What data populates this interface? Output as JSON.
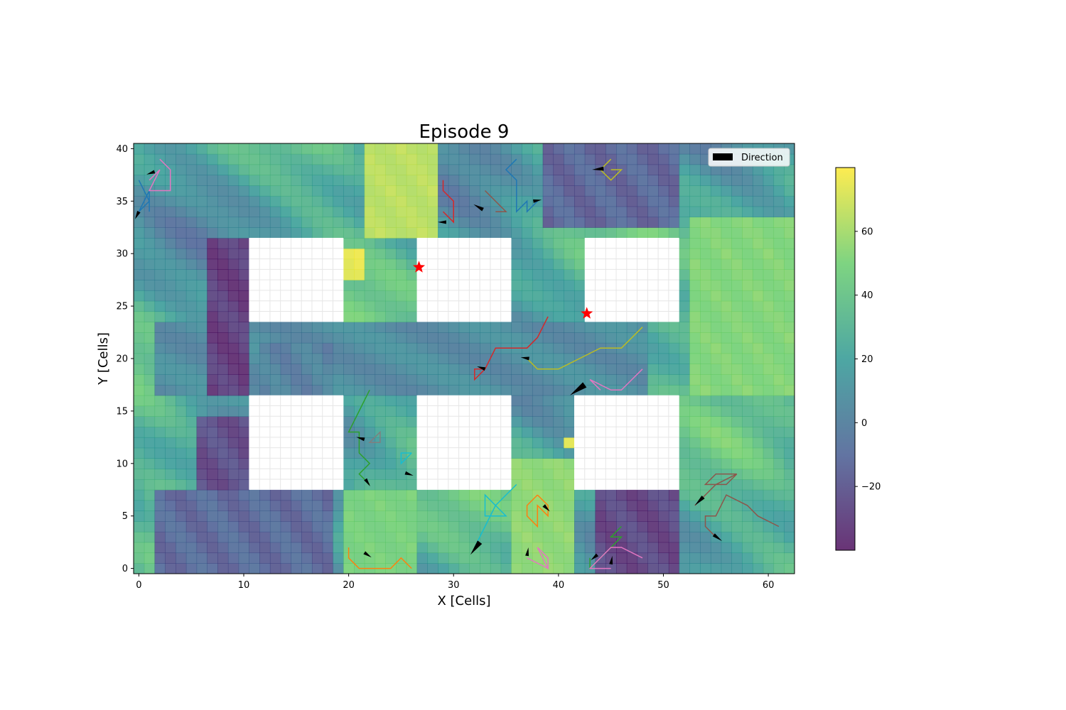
{
  "chart_data": {
    "type": "heatmap",
    "title": "Episode 9",
    "xlabel": "X [Cells]",
    "ylabel": "Y [Cells]",
    "xlim": [
      -0.5,
      62.5
    ],
    "ylim": [
      -0.5,
      40.5
    ],
    "xticks": [
      0,
      10,
      20,
      30,
      40,
      50,
      60
    ],
    "yticks": [
      0,
      5,
      10,
      15,
      20,
      25,
      30,
      35,
      40
    ],
    "colorbar": {
      "range": [
        -40,
        80
      ],
      "ticks": [
        60,
        40,
        20,
        0,
        -20
      ],
      "colormap": "viridis",
      "alpha": 0.8
    },
    "legend": {
      "label": "Direction",
      "location": "upper right"
    },
    "obstacles": [
      {
        "x": [
          11,
          19
        ],
        "y": [
          24,
          31
        ]
      },
      {
        "x": [
          27,
          35
        ],
        "y": [
          24,
          31
        ]
      },
      {
        "x": [
          43,
          51
        ],
        "y": [
          24,
          31
        ]
      },
      {
        "x": [
          11,
          19
        ],
        "y": [
          8,
          16
        ]
      },
      {
        "x": [
          27,
          35
        ],
        "y": [
          8,
          16
        ]
      },
      {
        "x": [
          42,
          51
        ],
        "y": [
          8,
          16
        ]
      }
    ],
    "dark_zones": [
      {
        "x": [
          7,
          10
        ],
        "y": [
          17,
          31
        ],
        "value": -32
      },
      {
        "x": [
          6,
          10
        ],
        "y": [
          8,
          14
        ],
        "value": -25
      },
      {
        "x": [
          2,
          18
        ],
        "y": [
          0,
          7
        ],
        "value": -12
      },
      {
        "x": [
          44,
          51
        ],
        "y": [
          0,
          7
        ],
        "value": -28
      },
      {
        "x": [
          39,
          51
        ],
        "y": [
          33,
          40
        ],
        "value": -14
      },
      {
        "x": [
          12,
          18
        ],
        "y": [
          17,
          21
        ],
        "value": 0
      }
    ],
    "hot_zones": [
      {
        "x": [
          20,
          21
        ],
        "y": [
          28,
          30
        ],
        "value": 78
      },
      {
        "x": [
          41,
          41
        ],
        "y": [
          12,
          12
        ],
        "value": 78
      },
      {
        "x": [
          22,
          28
        ],
        "y": [
          32,
          40
        ],
        "value": 68
      },
      {
        "x": [
          36,
          41
        ],
        "y": [
          0,
          10
        ],
        "value": 58
      },
      {
        "x": [
          20,
          26
        ],
        "y": [
          0,
          7
        ],
        "value": 52
      },
      {
        "x": [
          53,
          62
        ],
        "y": [
          17,
          33
        ],
        "value": 55
      }
    ],
    "goals": [
      {
        "x": 26.7,
        "y": 28.7
      },
      {
        "x": 42.7,
        "y": 24.3
      }
    ],
    "trajectories": [
      {
        "color": "#1f77b4",
        "points": [
          [
            0,
            37
          ],
          [
            1,
            35
          ],
          [
            0,
            34
          ],
          [
            1,
            36
          ],
          [
            1,
            34
          ]
        ],
        "arrow": [
          0,
          34,
          -0.3,
          -0.6
        ]
      },
      {
        "color": "#e377c2",
        "points": [
          [
            2,
            39
          ],
          [
            3,
            38
          ],
          [
            3,
            36
          ],
          [
            1,
            36
          ],
          [
            2,
            38
          ],
          [
            1,
            37
          ]
        ],
        "arrow": [
          1.5,
          37.8,
          -0.6,
          -0.2
        ]
      },
      {
        "color": "#1f77b4",
        "points": [
          [
            36,
            39
          ],
          [
            35,
            38
          ],
          [
            36,
            37
          ],
          [
            36,
            34
          ],
          [
            37,
            35
          ],
          [
            37,
            34
          ],
          [
            38,
            35
          ]
        ],
        "arrow": [
          37.6,
          35,
          0.6,
          0.1
        ]
      },
      {
        "color": "#d62728",
        "points": [
          [
            29,
            37
          ],
          [
            29,
            36
          ],
          [
            30,
            35
          ],
          [
            30,
            33
          ],
          [
            29,
            34
          ]
        ],
        "arrow": [
          29.3,
          33,
          -0.6,
          0
        ]
      },
      {
        "color": "#8c564b",
        "points": [
          [
            33,
            36
          ],
          [
            35,
            34
          ],
          [
            34,
            34
          ]
        ],
        "arrow": [
          32.8,
          34.2,
          -0.9,
          0.5
        ]
      },
      {
        "color": "#bcbd22",
        "points": [
          [
            45,
            39
          ],
          [
            44,
            38
          ],
          [
            45,
            37
          ],
          [
            46,
            38
          ],
          [
            45,
            38
          ]
        ],
        "arrow": [
          44.3,
          38.1,
          -1.1,
          -0.1
        ]
      },
      {
        "color": "#d62728",
        "points": [
          [
            39,
            24
          ],
          [
            38,
            22
          ],
          [
            37,
            21
          ],
          [
            34,
            21
          ],
          [
            33,
            19
          ],
          [
            32,
            18
          ],
          [
            32,
            19
          ],
          [
            33,
            19
          ]
        ],
        "arrow": [
          33,
          19,
          -0.3,
          0.1
        ]
      },
      {
        "color": "#bcbd22",
        "points": [
          [
            48,
            23
          ],
          [
            46,
            21
          ],
          [
            44,
            21
          ],
          [
            42,
            20
          ],
          [
            40,
            19
          ],
          [
            38,
            19
          ],
          [
            37,
            20
          ]
        ],
        "arrow": [
          37.2,
          20,
          -0.7,
          0.1
        ]
      },
      {
        "color": "#e377c2",
        "points": [
          [
            48,
            19
          ],
          [
            46,
            17
          ],
          [
            45,
            17
          ],
          [
            43,
            18
          ],
          [
            44,
            17
          ]
        ],
        "arrow": [
          42.5,
          17.5,
          -1.4,
          -1
        ]
      },
      {
        "color": "#2ca02c",
        "points": [
          [
            22,
            17
          ],
          [
            20,
            13
          ],
          [
            21,
            13
          ],
          [
            21,
            11
          ],
          [
            22,
            10
          ],
          [
            21,
            9
          ],
          [
            22,
            8
          ]
        ],
        "arrow": [
          21.6,
          8.5,
          0.4,
          -0.6
        ]
      },
      {
        "color": "#7f7f7f",
        "points": [
          [
            23,
            13
          ],
          [
            22,
            12
          ],
          [
            23,
            12
          ],
          [
            23,
            13
          ],
          [
            22,
            12
          ]
        ],
        "arrow": [
          21.5,
          12.3,
          -0.7,
          0.2
        ]
      },
      {
        "color": "#17becf",
        "points": [
          [
            26,
            11
          ],
          [
            25,
            10
          ],
          [
            25,
            11
          ],
          [
            26,
            11
          ]
        ],
        "arrow": [
          25.4,
          9.1,
          0.6,
          -0.2
        ]
      },
      {
        "color": "#17becf",
        "points": [
          [
            36,
            8
          ],
          [
            35,
            7
          ],
          [
            34,
            6
          ],
          [
            33,
            7
          ],
          [
            33,
            5
          ],
          [
            35,
            5
          ],
          [
            34,
            6
          ],
          [
            33,
            4
          ],
          [
            32,
            2
          ]
        ],
        "arrow": [
          32.5,
          2.5,
          -0.9,
          -1.2
        ]
      },
      {
        "color": "#ff7f0e",
        "points": [
          [
            38,
            7
          ],
          [
            37,
            6
          ],
          [
            37,
            5
          ],
          [
            38,
            4
          ],
          [
            38,
            6
          ],
          [
            39,
            5
          ],
          [
            39,
            6
          ],
          [
            38,
            7
          ]
        ],
        "arrow": [
          38.6,
          6,
          0.5,
          -0.5
        ]
      },
      {
        "color": "#ff7f0e",
        "points": [
          [
            20,
            2
          ],
          [
            20,
            1
          ],
          [
            21,
            0
          ],
          [
            24,
            0
          ],
          [
            25,
            1
          ],
          [
            26,
            0
          ]
        ],
        "arrow": [
          21.5,
          1.5,
          0.6,
          -0.4
        ]
      },
      {
        "color": "#e377c2",
        "points": [
          [
            37,
            1
          ],
          [
            39,
            0
          ],
          [
            38,
            2
          ],
          [
            39,
            1
          ],
          [
            39,
            0
          ]
        ],
        "arrow": [
          37,
          1.2,
          0.1,
          0.6
        ]
      },
      {
        "color": "#2ca02c",
        "points": [
          [
            46,
            4
          ],
          [
            45,
            3
          ],
          [
            46,
            3
          ],
          [
            45,
            2
          ],
          [
            43,
            0
          ],
          [
            43,
            1
          ]
        ],
        "arrow": [
          43.7,
          1.3,
          -0.6,
          -0.5
        ]
      },
      {
        "color": "#e377c2",
        "points": [
          [
            48,
            1
          ],
          [
            46,
            2
          ],
          [
            45,
            2
          ],
          [
            43,
            0
          ],
          [
            45,
            0
          ]
        ],
        "arrow": [
          45,
          0.4,
          0.1,
          0.6
        ]
      },
      {
        "color": "#8c564b",
        "points": [
          [
            57,
            9
          ],
          [
            56,
            8
          ],
          [
            54,
            8
          ],
          [
            55,
            9
          ],
          [
            57,
            9
          ],
          [
            55,
            8
          ],
          [
            53,
            6
          ]
        ],
        "arrow": [
          53.8,
          6.8,
          -0.8,
          -0.8
        ]
      },
      {
        "color": "#8c564b",
        "points": [
          [
            61,
            4
          ],
          [
            59,
            5
          ],
          [
            58,
            6
          ],
          [
            56,
            7
          ],
          [
            55,
            5
          ],
          [
            54,
            5
          ],
          [
            54,
            4
          ],
          [
            55,
            3
          ]
        ],
        "arrow": [
          54.8,
          3.2,
          0.8,
          -0.6
        ]
      }
    ]
  }
}
